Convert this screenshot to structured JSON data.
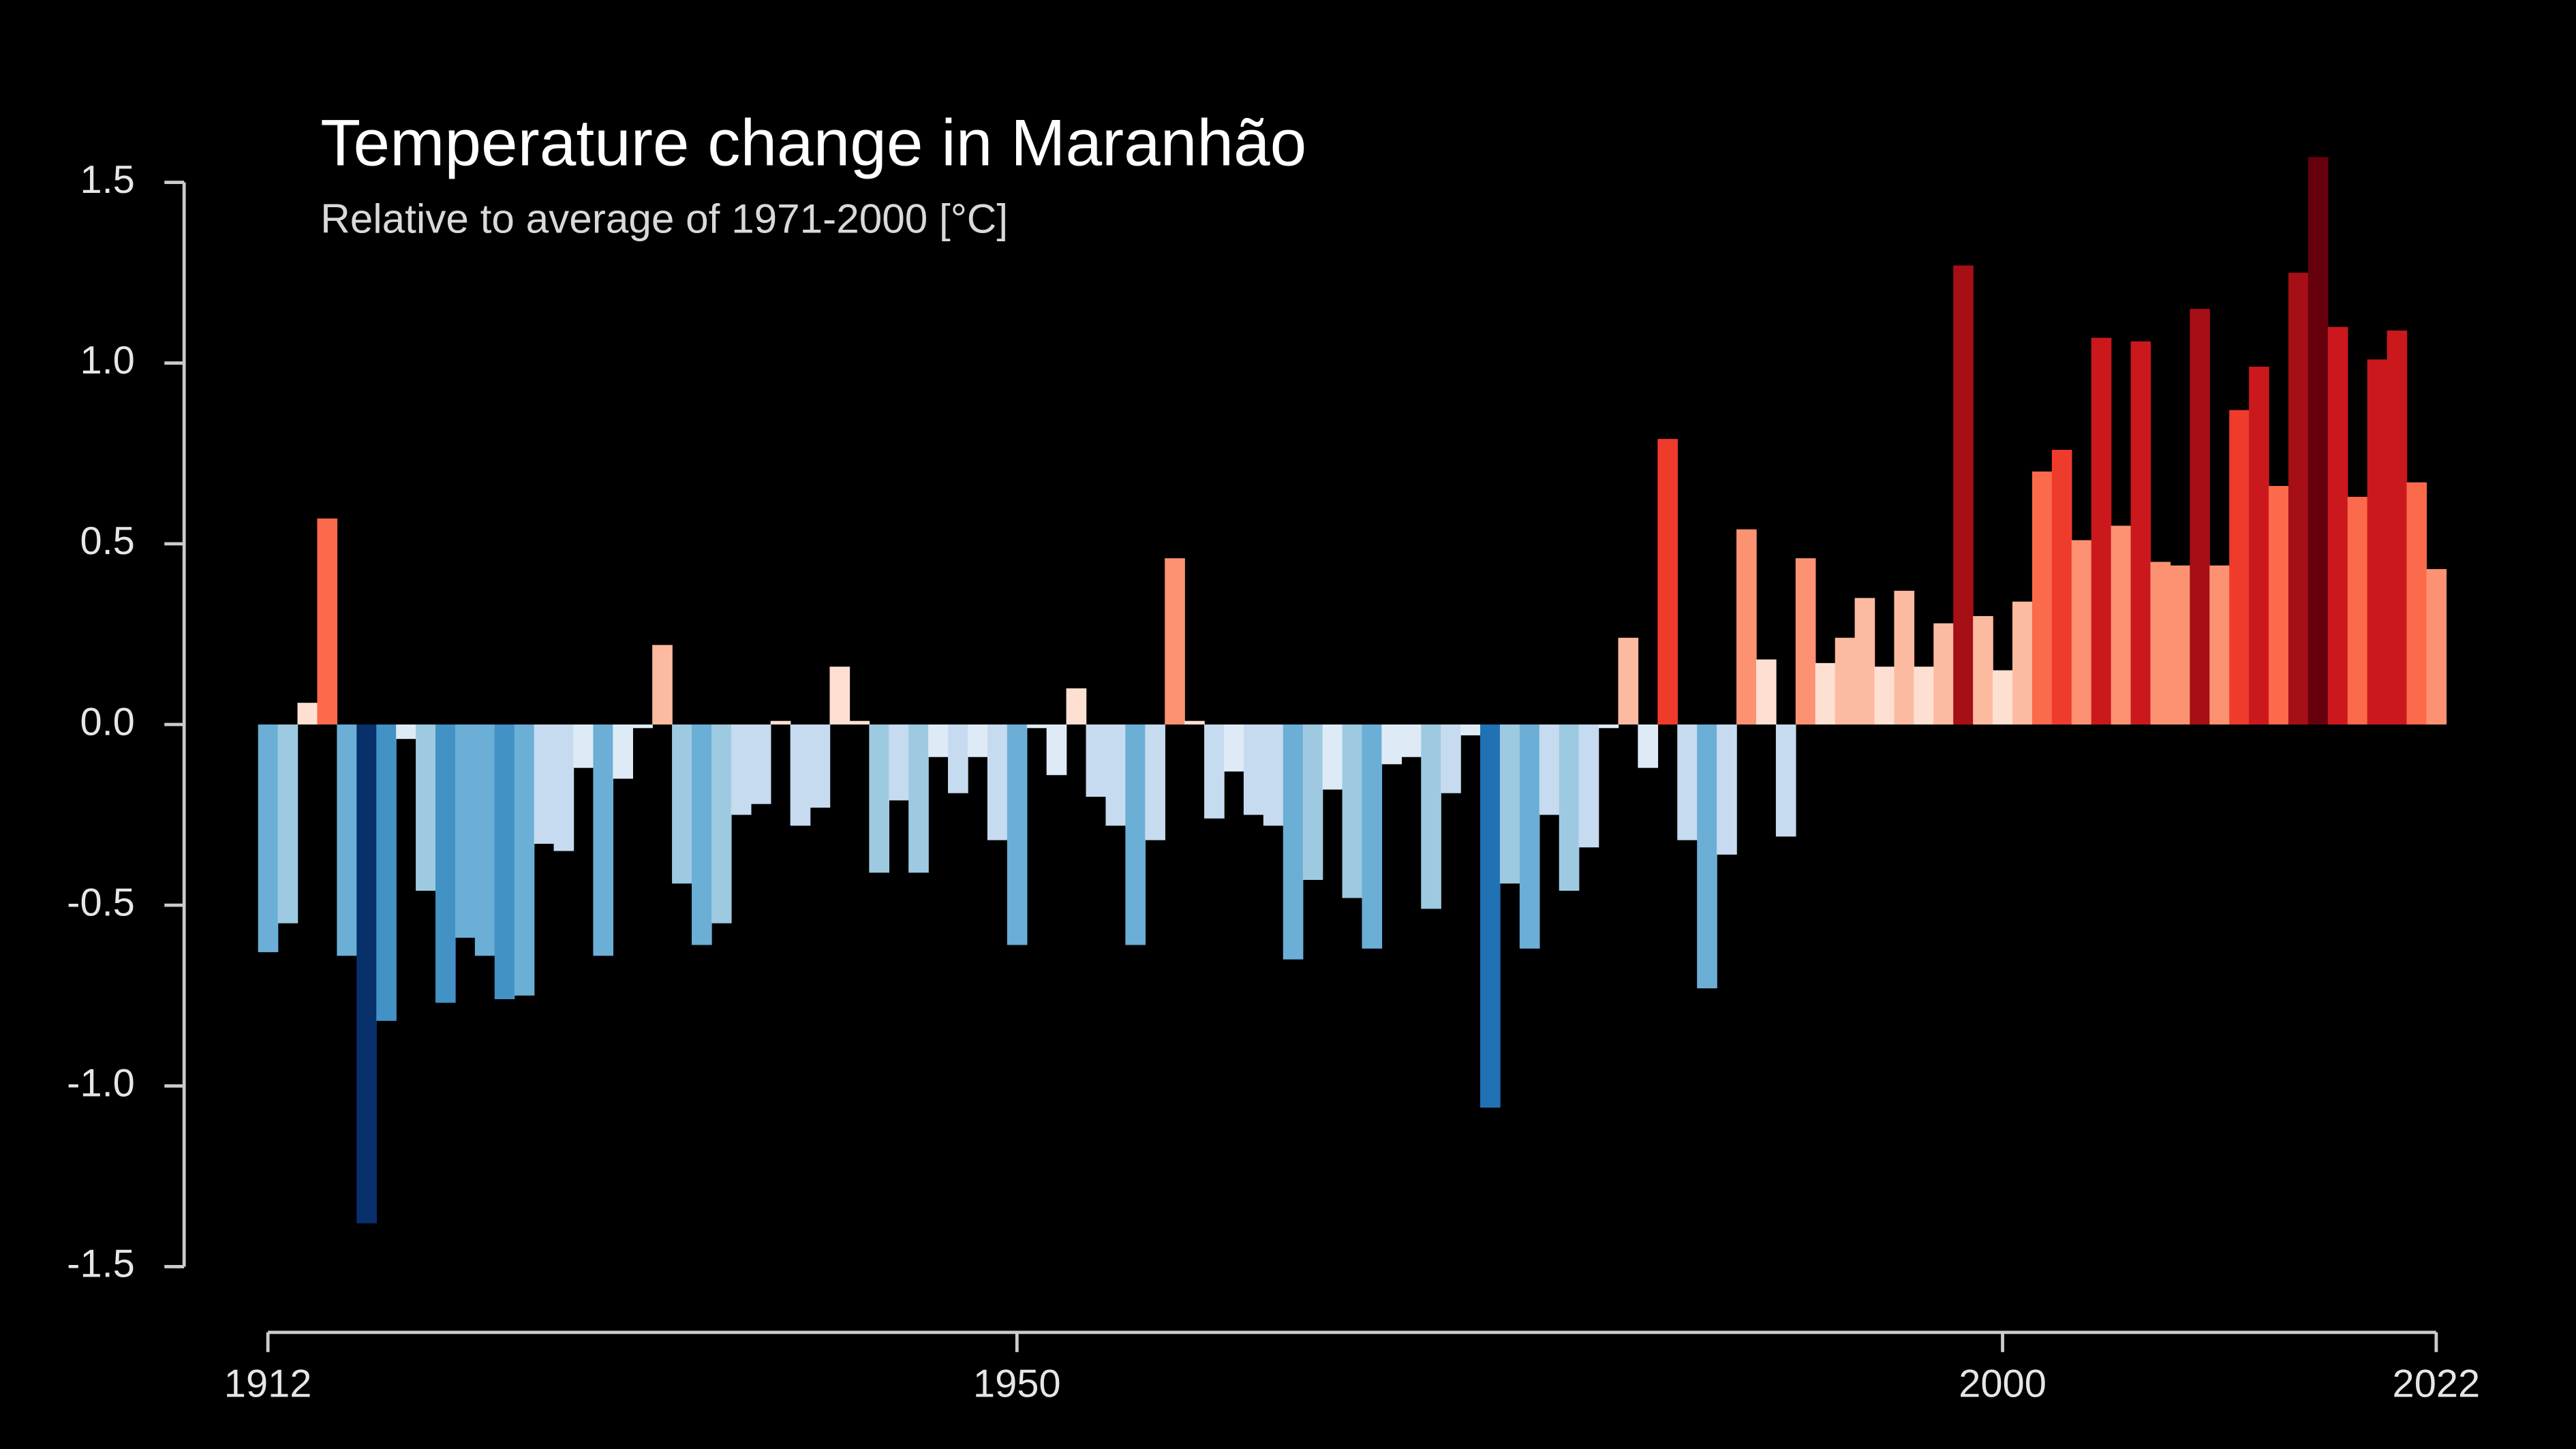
{
  "chart_data": {
    "type": "bar",
    "title": "Temperature change in Maranhão",
    "subtitle": "Relative to average of 1971-2000  [°C]",
    "x": [
      1912,
      1913,
      1914,
      1915,
      1916,
      1917,
      1918,
      1919,
      1920,
      1921,
      1922,
      1923,
      1924,
      1925,
      1926,
      1927,
      1928,
      1929,
      1930,
      1931,
      1932,
      1933,
      1934,
      1935,
      1936,
      1937,
      1938,
      1939,
      1940,
      1941,
      1942,
      1943,
      1944,
      1945,
      1946,
      1947,
      1948,
      1949,
      1950,
      1951,
      1952,
      1953,
      1954,
      1955,
      1956,
      1957,
      1958,
      1959,
      1960,
      1961,
      1962,
      1963,
      1964,
      1965,
      1966,
      1967,
      1968,
      1969,
      1970,
      1971,
      1972,
      1973,
      1974,
      1975,
      1976,
      1977,
      1978,
      1979,
      1980,
      1981,
      1982,
      1983,
      1984,
      1985,
      1986,
      1987,
      1988,
      1989,
      1990,
      1991,
      1992,
      1993,
      1994,
      1995,
      1996,
      1997,
      1998,
      1999,
      2000,
      2001,
      2002,
      2003,
      2004,
      2005,
      2006,
      2007,
      2008,
      2009,
      2010,
      2011,
      2012,
      2013,
      2014,
      2015,
      2016,
      2017,
      2018,
      2019,
      2020,
      2021,
      2022
    ],
    "values": [
      -0.63,
      -0.55,
      0.06,
      0.57,
      -0.64,
      -1.38,
      -0.82,
      -0.04,
      -0.46,
      -0.77,
      -0.59,
      -0.64,
      -0.76,
      -0.75,
      -0.33,
      -0.35,
      -0.12,
      -0.64,
      -0.15,
      -0.01,
      0.22,
      -0.44,
      -0.61,
      -0.55,
      -0.25,
      -0.22,
      0.01,
      -0.28,
      -0.23,
      0.16,
      0.01,
      -0.41,
      -0.21,
      -0.41,
      -0.09,
      -0.19,
      -0.09,
      -0.32,
      -0.61,
      -0.01,
      -0.14,
      0.1,
      -0.2,
      -0.28,
      -0.61,
      -0.32,
      0.46,
      0.01,
      -0.26,
      -0.13,
      -0.25,
      -0.28,
      -0.65,
      -0.43,
      -0.18,
      -0.48,
      -0.62,
      -0.11,
      -0.09,
      -0.51,
      -0.19,
      -0.03,
      -1.06,
      -0.44,
      -0.62,
      -0.25,
      -0.46,
      -0.34,
      -0.01,
      0.24,
      -0.12,
      0.79,
      -0.32,
      -0.73,
      -0.36,
      0.54,
      0.18,
      -0.31,
      0.46,
      0.17,
      0.24,
      0.35,
      0.16,
      0.37,
      0.16,
      0.28,
      1.27,
      0.3,
      0.15,
      0.34,
      0.7,
      0.76,
      0.51,
      1.07,
      0.55,
      1.06,
      0.45,
      0.44,
      1.15,
      0.44,
      0.87,
      0.99,
      0.66,
      1.25,
      1.57,
      1.1,
      0.63,
      1.01,
      1.09,
      0.67,
      0.43
    ],
    "colormap": [
      "#08306b",
      "#08519c",
      "#2171b5",
      "#4292c6",
      "#6baed6",
      "#9ecae1",
      "#c6dbef",
      "#deebf7",
      "#fee0d2",
      "#fcbba1",
      "#fc9272",
      "#fb6a4a",
      "#ef3b2c",
      "#cb181d",
      "#a50f15",
      "#67000d"
    ],
    "xlim": [
      1912,
      2022
    ],
    "xticks": [
      1912,
      1950,
      2000,
      2022
    ],
    "ylim": [
      -1.5,
      1.5
    ],
    "yticks": [
      1.5,
      {
        "value": 1.0,
        "label": "1.0"
      },
      0.5,
      {
        "value": 0.0,
        "label": "0.0"
      },
      -0.5,
      {
        "value": -1.0,
        "label": "-1.0"
      },
      -1.5
    ]
  }
}
